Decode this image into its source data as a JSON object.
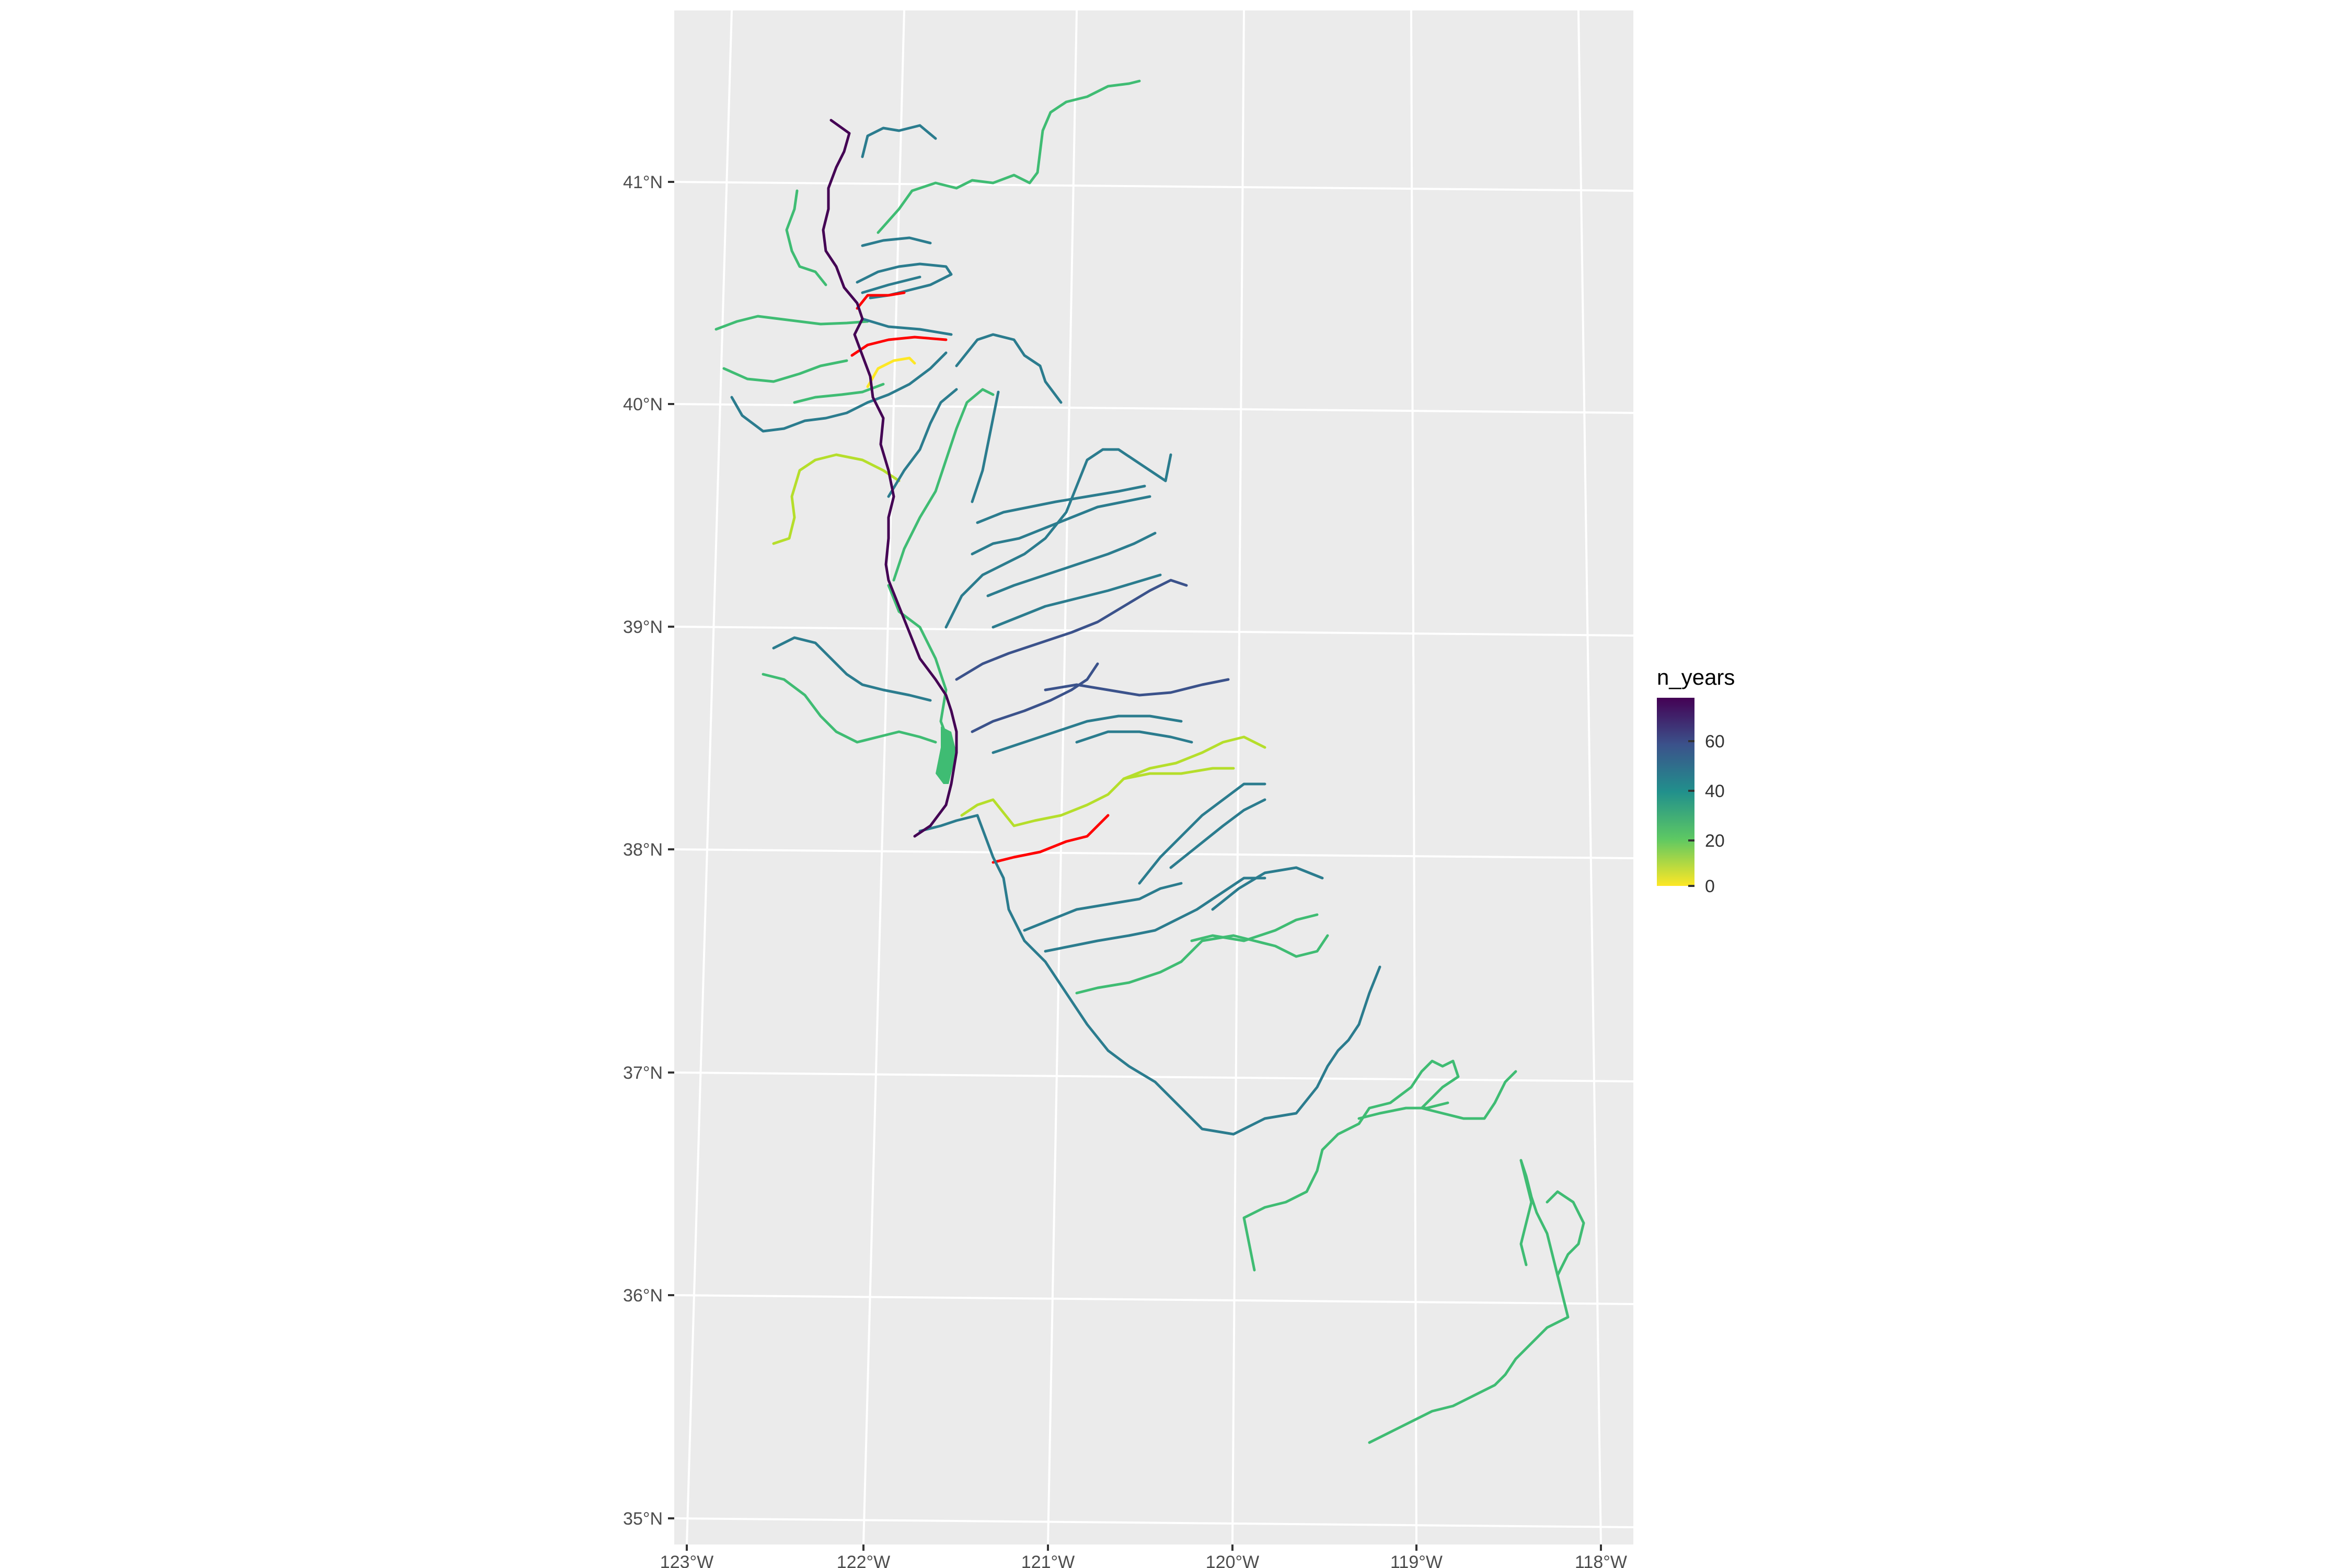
{
  "map": {
    "graticule": {
      "lat": [
        "41°N",
        "40°N",
        "39°N",
        "38°N",
        "37°N",
        "36°N",
        "35°N"
      ],
      "lon": [
        "123°W",
        "122°W",
        "121°W",
        "120°W",
        "119°W",
        "118°W"
      ]
    },
    "legend": {
      "title": "n_years",
      "labels": [
        "60",
        "40",
        "20",
        "0"
      ],
      "gradient_stops": [
        "#440154",
        "#3b528b",
        "#21908c",
        "#5dc863",
        "#fde725"
      ]
    },
    "colors": {
      "main_stem": "#440154",
      "dark_blue": "#3b528b",
      "teal": "#2b7c8e",
      "green": "#3fbc73",
      "yellow_green": "#b5de2b",
      "yellow": "#fde725",
      "no_data": "#ff0000"
    }
  }
}
